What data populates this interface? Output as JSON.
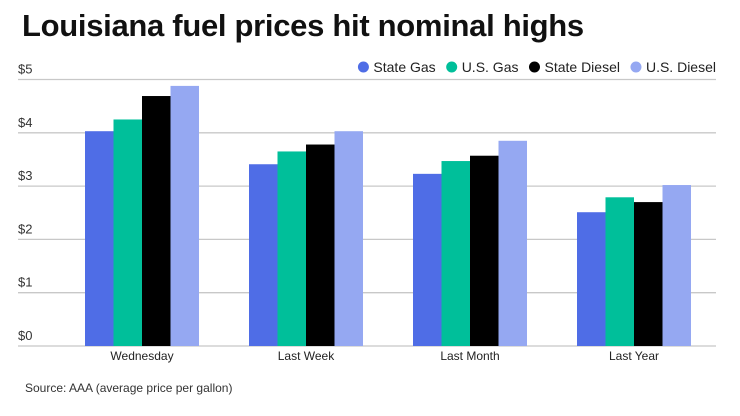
{
  "chart_data": {
    "type": "bar",
    "title": "Louisiana fuel prices hit nominal highs",
    "source": "Source: AAA (average price per gallon)",
    "categories": [
      "Wednesday",
      "Last Week",
      "Last Month",
      "Last Year"
    ],
    "series": [
      {
        "name": "State Gas",
        "color": "#4f6de6",
        "values": [
          4.03,
          3.41,
          3.23,
          2.51
        ]
      },
      {
        "name": "U.S. Gas",
        "color": "#00bf9a",
        "values": [
          4.25,
          3.65,
          3.47,
          2.79
        ]
      },
      {
        "name": "State Diesel",
        "color": "#000000",
        "values": [
          4.69,
          3.78,
          3.57,
          2.7
        ]
      },
      {
        "name": "U.S. Diesel",
        "color": "#95a8f2",
        "values": [
          4.88,
          4.03,
          3.85,
          3.02
        ]
      }
    ],
    "ylim": [
      0,
      5
    ],
    "yticks": [
      0,
      1,
      2,
      3,
      4,
      5
    ],
    "ytick_labels": [
      "$0",
      "$1",
      "$2",
      "$3",
      "$4",
      "$5"
    ],
    "xlabel": "",
    "ylabel": "",
    "grid": true,
    "legend_position": "top-right"
  }
}
